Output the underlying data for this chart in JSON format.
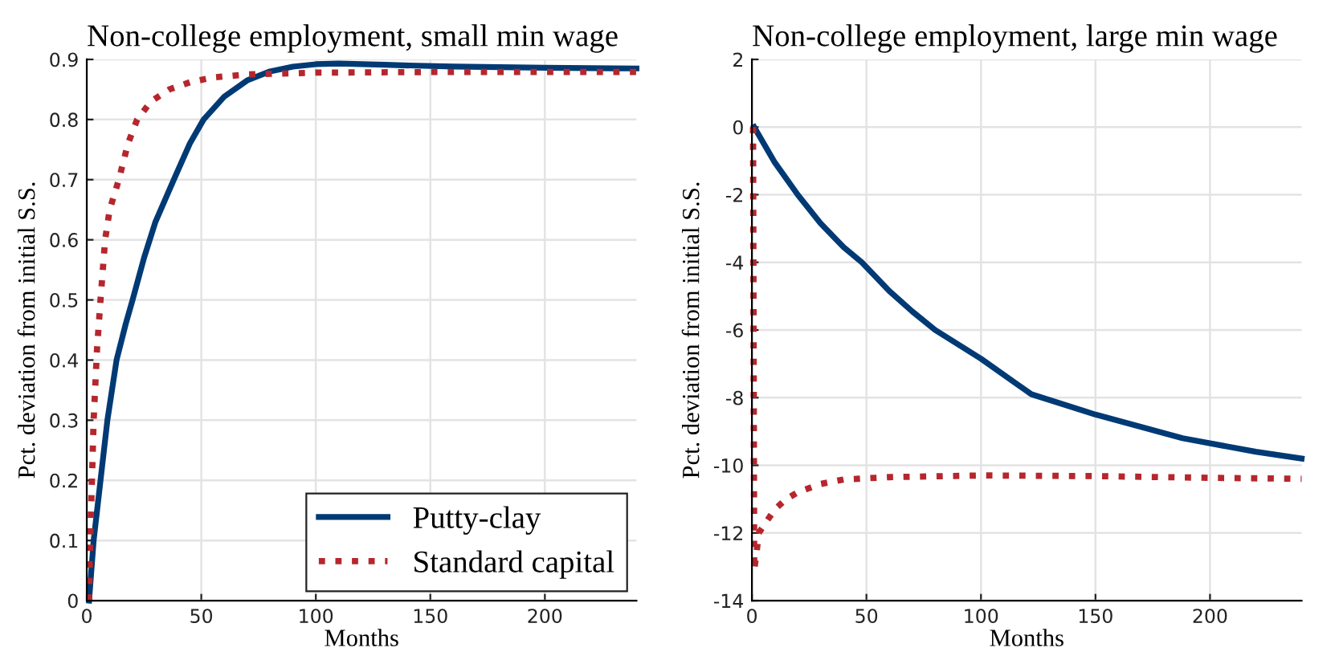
{
  "chart_data": [
    {
      "type": "line",
      "title": "Non-college employment, small min wage",
      "xlabel": "Months",
      "ylabel": "Pct. deviation from initial S.S.",
      "xlim": [
        0,
        240
      ],
      "xticks": [
        0,
        50,
        100,
        150,
        200
      ],
      "ylim": [
        0,
        0.9
      ],
      "yticks": [
        0,
        0.1,
        0.2,
        0.3,
        0.4,
        0.5,
        0.6,
        0.7,
        0.8,
        0.9
      ],
      "grid": true,
      "legend": "bottom right",
      "series": [
        {
          "name": "Putty-clay",
          "color": "#003a75",
          "line_style": "solid",
          "x": [
            1,
            3,
            6,
            9,
            13,
            17,
            20,
            25,
            30,
            38,
            45,
            51,
            60,
            70,
            80,
            90,
            100,
            110,
            130,
            160,
            200,
            240
          ],
          "values": [
            0,
            0.1,
            0.2,
            0.3,
            0.4,
            0.46,
            0.5,
            0.57,
            0.63,
            0.7,
            0.76,
            0.8,
            0.838,
            0.865,
            0.88,
            0.888,
            0.892,
            0.893,
            0.891,
            0.888,
            0.886,
            0.885
          ]
        },
        {
          "name": "Standard capital",
          "color": "#b5272d",
          "line_style": "dotted",
          "x": [
            1,
            1.5,
            3,
            4.5,
            6,
            8,
            10,
            14,
            18,
            22,
            28,
            36,
            45,
            55,
            70,
            100,
            150,
            240
          ],
          "values": [
            0,
            0.1,
            0.3,
            0.42,
            0.5,
            0.6,
            0.65,
            0.7,
            0.76,
            0.8,
            0.83,
            0.85,
            0.862,
            0.87,
            0.875,
            0.878,
            0.879,
            0.879
          ]
        }
      ]
    },
    {
      "type": "line",
      "title": "Non-college employment, large min wage",
      "xlabel": "Months",
      "ylabel": "Pct. deviation from initial S.S.",
      "xlim": [
        0,
        240
      ],
      "xticks": [
        0,
        50,
        100,
        150,
        200
      ],
      "ylim": [
        -14,
        2
      ],
      "yticks": [
        -14,
        -12,
        -10,
        -8,
        -6,
        -4,
        -2,
        0,
        2
      ],
      "grid": true,
      "series": [
        {
          "color": "#003a75",
          "line_style": "solid",
          "x": [
            1,
            10,
            20,
            30,
            40,
            48,
            60,
            70,
            80,
            100,
            122,
            150,
            188,
            220,
            240
          ],
          "values": [
            0,
            -1.05,
            -2,
            -2.85,
            -3.55,
            -4,
            -4.85,
            -5.45,
            -6,
            -6.85,
            -7.9,
            -8.5,
            -9.2,
            -9.6,
            -9.8
          ]
        },
        {
          "color": "#b5272d",
          "line_style": "dotted",
          "x": [
            0.5,
            1,
            2,
            3,
            5,
            10,
            15,
            20,
            30,
            40,
            60,
            100,
            150,
            200,
            240
          ],
          "values": [
            0,
            -13.1,
            -12.6,
            -12,
            -11.8,
            -11.3,
            -11,
            -10.8,
            -10.55,
            -10.42,
            -10.35,
            -10.3,
            -10.32,
            -10.37,
            -10.4
          ]
        }
      ]
    }
  ]
}
